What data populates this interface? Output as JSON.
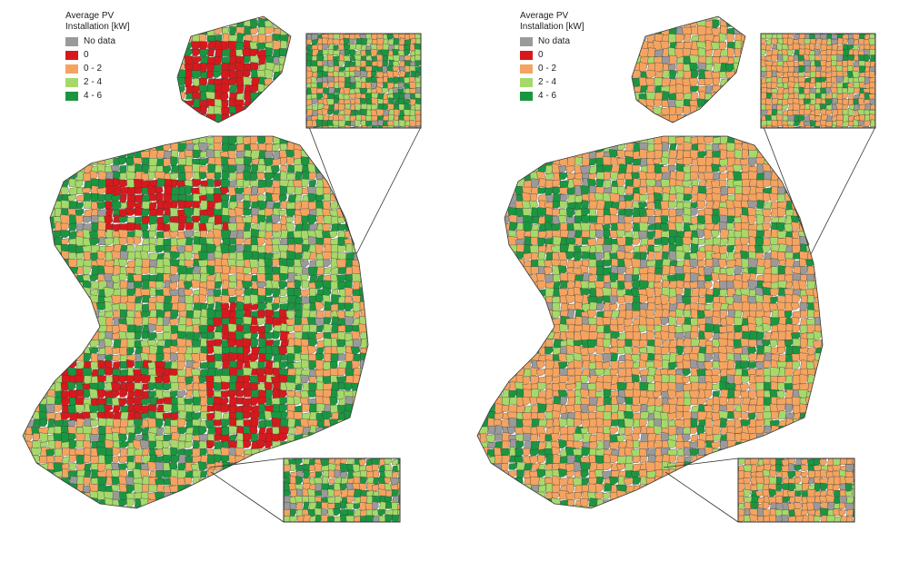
{
  "maps": [
    {
      "legend": {
        "title_line1": "Average PV",
        "title_line2": "Installation [kW]",
        "items": [
          {
            "label": "No data",
            "color": "#9a9a9a"
          },
          {
            "label": "0",
            "color": "#d7191c"
          },
          {
            "label": "0 - 2",
            "color": "#f4a460"
          },
          {
            "label": "2 - 4",
            "color": "#a6d96a"
          },
          {
            "label": "4 - 6",
            "color": "#1a9641"
          }
        ]
      },
      "dominant_classes": [
        "0 - 2",
        "2 - 4",
        "4 - 6",
        "0"
      ]
    },
    {
      "legend": {
        "title_line1": "Average PV",
        "title_line2": "Installation [kW]",
        "items": [
          {
            "label": "No data",
            "color": "#9a9a9a"
          },
          {
            "label": "0",
            "color": "#d7191c"
          },
          {
            "label": "0 - 2",
            "color": "#f4a460"
          },
          {
            "label": "2 - 4",
            "color": "#a6d96a"
          },
          {
            "label": "4 - 6",
            "color": "#1a9641"
          }
        ]
      },
      "dominant_classes": [
        "0 - 2",
        "2 - 4",
        "4 - 6"
      ]
    }
  ],
  "colors": {
    "border": "#3a3a3a",
    "inset_frame": "#333333"
  }
}
